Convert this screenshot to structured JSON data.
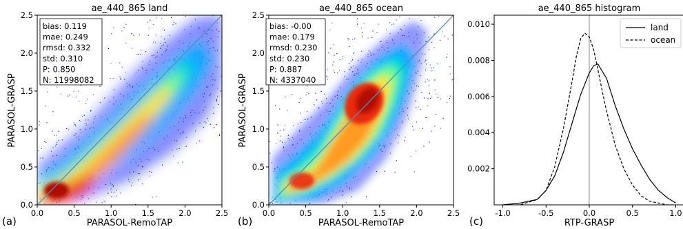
{
  "figure": {
    "panels": [
      {
        "id": "a",
        "label": "(a)",
        "title": "ae_440_865 land",
        "xlabel": "PARASOL-RemoTAP",
        "ylabel": "PARASOL-GRASP",
        "stats": [
          "bias: 0.119",
          "mae: 0.249",
          "rmsd: 0.332",
          "std: 0.310",
          "P: 0.850",
          "N: 11998082"
        ]
      },
      {
        "id": "b",
        "label": "(b)",
        "title": "ae_440_865 ocean",
        "xlabel": "PARASOL-RemoTAP",
        "ylabel": "PARASOL-GRASP",
        "stats": [
          "bias: -0.00",
          "mae: 0.179",
          "rmsd: 0.230",
          "std: 0.230",
          "P: 0.887",
          "N: 4337040"
        ]
      },
      {
        "id": "c",
        "label": "(c)",
        "title": "ae_440_865 histogram",
        "xlabel": "RTP-GRASP",
        "ylabel": ""
      }
    ]
  },
  "chart_data": [
    {
      "type": "heatmap",
      "title": "ae_440_865 land",
      "xlabel": "PARASOL-RemoTAP",
      "ylabel": "PARASOL-GRASP",
      "xlim": [
        0,
        2.5
      ],
      "ylim": [
        0,
        2.5
      ],
      "xticks": [
        "0.0",
        "0.5",
        "1.0",
        "1.5",
        "2.0",
        "2.5"
      ],
      "yticks": [
        "0.0",
        "0.5",
        "1.0",
        "1.5",
        "2.0",
        "2.5"
      ],
      "colormap": "jet",
      "reference_line": "1:1",
      "density_ridge": [
        [
          0.0,
          0.15
        ],
        [
          0.3,
          0.22
        ],
        [
          0.7,
          0.5
        ],
        [
          1.0,
          0.9
        ],
        [
          1.4,
          1.25
        ],
        [
          1.8,
          1.6
        ],
        [
          2.0,
          1.85
        ],
        [
          2.3,
          2.15
        ]
      ],
      "density_peak": [
        0.3,
        0.22
      ],
      "stats": {
        "bias": 0.119,
        "mae": 0.249,
        "rmsd": 0.332,
        "std": 0.31,
        "P": 0.85,
        "N": 11998082
      }
    },
    {
      "type": "heatmap",
      "title": "ae_440_865 ocean",
      "xlabel": "PARASOL-RemoTAP",
      "ylabel": "PARASOL-GRASP",
      "xlim": [
        0,
        2.5
      ],
      "ylim": [
        0,
        2.5
      ],
      "xticks": [
        "0.0",
        "0.5",
        "1.0",
        "1.5",
        "2.0",
        "2.5"
      ],
      "yticks": [
        "0.0",
        "0.5",
        "1.0",
        "1.5",
        "2.0",
        "2.5"
      ],
      "colormap": "jet",
      "reference_line": "1:1",
      "density_ridge": [
        [
          0.2,
          0.2
        ],
        [
          0.5,
          0.38
        ],
        [
          0.8,
          0.7
        ],
        [
          1.1,
          1.15
        ],
        [
          1.35,
          1.4
        ],
        [
          1.6,
          1.65
        ],
        [
          1.9,
          1.95
        ]
      ],
      "density_peak": [
        1.3,
        1.4
      ],
      "stats": {
        "bias": -0.0,
        "mae": 0.179,
        "rmsd": 0.23,
        "std": 0.23,
        "P": 0.887,
        "N": 4337040
      }
    },
    {
      "type": "line",
      "title": "ae_440_865 histogram",
      "xlabel": "RTP-GRASP",
      "ylabel": "",
      "xlim": [
        -1.1,
        1.1
      ],
      "ylim": [
        0.0,
        0.0105
      ],
      "xticks": [
        "-1.0",
        "-0.5",
        "0.0",
        "0.5",
        "1.0"
      ],
      "yticks": [
        "0.002",
        "0.004",
        "0.006",
        "0.008",
        "0.010"
      ],
      "vertical_line_x": 0.0,
      "legend": "top-right",
      "series": [
        {
          "name": "land",
          "style": "solid",
          "x": [
            -1.0,
            -0.8,
            -0.6,
            -0.5,
            -0.4,
            -0.3,
            -0.2,
            -0.1,
            0.0,
            0.05,
            0.1,
            0.2,
            0.3,
            0.4,
            0.5,
            0.6,
            0.7,
            0.8,
            0.9,
            1.0
          ],
          "y": [
            0.0,
            0.0001,
            0.0003,
            0.0008,
            0.0016,
            0.0029,
            0.0045,
            0.0061,
            0.0073,
            0.0077,
            0.0078,
            0.007,
            0.0055,
            0.0042,
            0.0031,
            0.0022,
            0.0014,
            0.0008,
            0.0004,
            0.0001
          ]
        },
        {
          "name": "ocean",
          "style": "dashed",
          "x": [
            -1.0,
            -0.8,
            -0.6,
            -0.5,
            -0.4,
            -0.3,
            -0.2,
            -0.15,
            -0.1,
            -0.05,
            0.0,
            0.05,
            0.1,
            0.15,
            0.2,
            0.3,
            0.4,
            0.5,
            0.6,
            0.7,
            0.8,
            0.9,
            1.0
          ],
          "y": [
            0.0,
            0.0,
            0.0003,
            0.0008,
            0.0021,
            0.0042,
            0.0068,
            0.0082,
            0.0092,
            0.0095,
            0.0093,
            0.0086,
            0.0075,
            0.0063,
            0.0052,
            0.0033,
            0.002,
            0.0011,
            0.0005,
            0.0002,
            0.0001,
            0.0,
            0.0
          ]
        }
      ]
    }
  ]
}
